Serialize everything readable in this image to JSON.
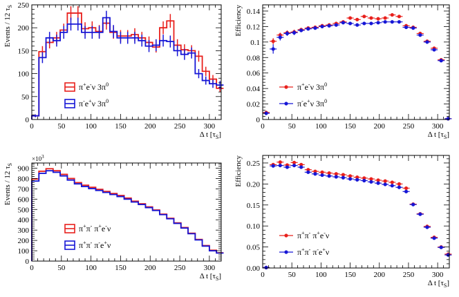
{
  "colors": {
    "red": "#e8201c",
    "blue": "#1616d6",
    "axis": "#000000"
  },
  "chart_data": [
    {
      "id": "p1",
      "type": "histogram",
      "xlabel_main": "Δ t [τ",
      "xlabel_sub": "S",
      "xlabel_end": "]",
      "ylabel_main": "Events / 12 τ",
      "ylabel_sub": "S",
      "xlim": [
        0,
        320
      ],
      "ylim": [
        0,
        250
      ],
      "xticks": [
        0,
        50,
        100,
        150,
        200,
        250,
        300
      ],
      "yticks": [
        0,
        50,
        100,
        150,
        200,
        250
      ],
      "ytick_labels": [
        "0",
        "50",
        "100",
        "150",
        "200",
        "250"
      ],
      "bin_width": 12,
      "x": [
        6,
        18,
        30,
        42,
        54,
        66,
        78,
        90,
        102,
        114,
        126,
        138,
        150,
        162,
        174,
        186,
        198,
        210,
        222,
        234,
        246,
        258,
        270,
        282,
        294,
        306,
        318
      ],
      "legend": {
        "mode": "boxes",
        "pos": "lower-left"
      },
      "series": [
        {
          "name_base": "π",
          "name_sup1": "+",
          "name_mid": "e",
          "name_sup2": "-",
          "name_tail": "ν 3π",
          "name_sup3": "0",
          "color": "red",
          "values": [
            8,
            148,
            168,
            178,
            195,
            232,
            232,
            198,
            200,
            192,
            210,
            190,
            182,
            182,
            185,
            178,
            168,
            158,
            200,
            215,
            162,
            152,
            150,
            138,
            105,
            88,
            68
          ],
          "errors": [
            3,
            12,
            13,
            13,
            14,
            15,
            15,
            14,
            14,
            14,
            14,
            14,
            13,
            13,
            14,
            13,
            13,
            12,
            14,
            15,
            13,
            12,
            12,
            12,
            10,
            9,
            8
          ]
        },
        {
          "name_base": "π",
          "name_sup1": "-",
          "name_mid": "e",
          "name_sup2": "+",
          "name_tail": "ν 3π",
          "name_sup3": "0",
          "color": "blue",
          "values": [
            8,
            135,
            178,
            172,
            190,
            208,
            208,
            190,
            190,
            190,
            222,
            192,
            178,
            178,
            178,
            172,
            160,
            162,
            172,
            170,
            150,
            142,
            145,
            100,
            85,
            78,
            75
          ],
          "errors": [
            3,
            12,
            13,
            13,
            14,
            14,
            14,
            14,
            14,
            14,
            15,
            14,
            13,
            13,
            13,
            13,
            13,
            13,
            13,
            13,
            12,
            12,
            12,
            10,
            9,
            9,
            9
          ]
        }
      ]
    },
    {
      "id": "p2",
      "type": "scatter",
      "xlabel_main": "Δ t [τ",
      "xlabel_sub": "S",
      "xlabel_end": "]",
      "ylabel_main": "Efficiency",
      "ylabel_sub": "",
      "xlim": [
        0,
        320
      ],
      "ylim": [
        0,
        0.148
      ],
      "xticks": [
        0,
        50,
        100,
        150,
        200,
        250,
        300
      ],
      "yticks": [
        0,
        0.02,
        0.04,
        0.06,
        0.08,
        0.1,
        0.12,
        0.14
      ],
      "ytick_labels": [
        "0",
        "0.02",
        "0.04",
        "0.06",
        "0.08",
        "0.1",
        "0.12",
        "0.14"
      ],
      "bin_width": 12,
      "x": [
        6,
        18,
        30,
        42,
        54,
        66,
        78,
        90,
        102,
        114,
        126,
        138,
        150,
        162,
        174,
        186,
        198,
        210,
        222,
        234,
        246,
        258,
        270,
        282,
        294,
        306,
        318
      ],
      "legend": {
        "mode": "markers",
        "pos": "lower-center"
      },
      "series": [
        {
          "name_base": "π",
          "name_sup1": "+",
          "name_mid": "e",
          "name_sup2": "-",
          "name_tail": "ν 3π",
          "name_sup3": "0",
          "color": "red",
          "values": [
            0.009,
            0.101,
            0.109,
            0.112,
            0.113,
            0.116,
            0.118,
            0.119,
            0.121,
            0.122,
            0.124,
            0.126,
            0.131,
            0.129,
            0.133,
            0.131,
            0.13,
            0.131,
            0.135,
            0.133,
            0.121,
            0.119,
            0.111,
            0.101,
            0.092,
            0.077,
            0.001
          ],
          "errors": [
            0.001,
            0.004,
            0.003,
            0.003,
            0.003,
            0.002,
            0.002,
            0.002,
            0.002,
            0.002,
            0.002,
            0.002,
            0.002,
            0.002,
            0.002,
            0.002,
            0.002,
            0.002,
            0.002,
            0.002,
            0.002,
            0.002,
            0.002,
            0.002,
            0.002,
            0.002,
            0.001
          ]
        },
        {
          "name_base": "π",
          "name_sup1": "-",
          "name_mid": "e",
          "name_sup2": "+",
          "name_tail": "ν 3π",
          "name_sup3": "0",
          "color": "blue",
          "values": [
            0.008,
            0.091,
            0.106,
            0.111,
            0.112,
            0.115,
            0.117,
            0.118,
            0.12,
            0.121,
            0.122,
            0.125,
            0.124,
            0.122,
            0.124,
            0.124,
            0.125,
            0.126,
            0.126,
            0.126,
            0.119,
            0.118,
            0.109,
            0.1,
            0.09,
            0.076,
            0.001
          ],
          "errors": [
            0.001,
            0.006,
            0.004,
            0.003,
            0.003,
            0.002,
            0.002,
            0.002,
            0.002,
            0.002,
            0.002,
            0.002,
            0.002,
            0.002,
            0.002,
            0.002,
            0.002,
            0.002,
            0.002,
            0.002,
            0.002,
            0.002,
            0.002,
            0.002,
            0.002,
            0.002,
            0.001
          ]
        }
      ]
    },
    {
      "id": "p3",
      "type": "histogram",
      "xlabel_main": "Δ t [τ",
      "xlabel_sub": "S",
      "xlabel_end": "]",
      "ylabel_main": "Events / 12 τ",
      "ylabel_sub": "S",
      "xlim": [
        0,
        320
      ],
      "ylim": [
        0,
        950
      ],
      "scale_label_base": "×10",
      "scale_label_exp": "3",
      "xticks": [
        0,
        50,
        100,
        150,
        200,
        250,
        300
      ],
      "yticks": [
        0,
        100,
        200,
        300,
        400,
        500,
        600,
        700,
        800,
        900
      ],
      "ytick_labels": [
        "0",
        "100",
        "200",
        "300",
        "400",
        "500",
        "600",
        "700",
        "800",
        "900"
      ],
      "bin_width": 12,
      "x": [
        6,
        18,
        30,
        42,
        54,
        66,
        78,
        90,
        102,
        114,
        126,
        138,
        150,
        162,
        174,
        186,
        198,
        210,
        222,
        234,
        246,
        258,
        270,
        282,
        294,
        306,
        318
      ],
      "legend": {
        "mode": "boxes",
        "pos": "lower-left"
      },
      "series": [
        {
          "name_base": "π",
          "name_sup1": "+",
          "name_mid": "π",
          "name_sup2": "-",
          "name_tail": " π",
          "name_sup3": "+",
          "name_tail2": "e",
          "name_sup4": "-",
          "name_tail3": "ν",
          "color": "red",
          "values": [
            795,
            870,
            895,
            875,
            840,
            800,
            760,
            735,
            715,
            695,
            675,
            655,
            635,
            610,
            580,
            555,
            525,
            495,
            455,
            415,
            370,
            325,
            270,
            210,
            150,
            105,
            80
          ]
        },
        {
          "name_base": "π",
          "name_sup1": "+",
          "name_mid": "π",
          "name_sup2": "-",
          "name_tail": " π",
          "name_sup3": "-",
          "name_tail2": "e",
          "name_sup4": "+",
          "name_tail3": "ν",
          "color": "blue",
          "values": [
            775,
            850,
            875,
            860,
            825,
            785,
            748,
            722,
            702,
            684,
            665,
            645,
            625,
            600,
            572,
            548,
            518,
            490,
            450,
            410,
            365,
            320,
            265,
            205,
            145,
            100,
            78
          ]
        }
      ]
    },
    {
      "id": "p4",
      "type": "scatter",
      "xlabel_main": "Δ t [τ",
      "xlabel_sub": "S",
      "xlabel_end": "]",
      "ylabel_main": "Efficiency",
      "ylabel_sub": "",
      "xlim": [
        0,
        320
      ],
      "ylim": [
        0,
        0.268
      ],
      "xticks": [
        0,
        50,
        100,
        150,
        200,
        250,
        300
      ],
      "yticks": [
        0,
        0.05,
        0.1,
        0.15,
        0.2,
        0.25
      ],
      "ytick_labels": [
        "0.00",
        "0.05",
        "0.10",
        "0.15",
        "0.20",
        "0.25"
      ],
      "bin_width": 12,
      "x": [
        6,
        18,
        30,
        42,
        54,
        66,
        78,
        90,
        102,
        114,
        126,
        138,
        150,
        162,
        174,
        186,
        198,
        210,
        222,
        234,
        246,
        258,
        270,
        282,
        294,
        306,
        318
      ],
      "legend": {
        "mode": "markers",
        "pos": "lower-center"
      },
      "series": [
        {
          "name_base": "π",
          "name_sup1": "+",
          "name_mid": "π",
          "name_sup2": "-",
          "name_tail": " π",
          "name_sup3": "+",
          "name_tail2": "e",
          "name_sup4": "-",
          "name_tail3": "ν",
          "color": "red",
          "values": [
            0.001,
            0.246,
            0.252,
            0.245,
            0.251,
            0.246,
            0.234,
            0.23,
            0.228,
            0.226,
            0.224,
            0.222,
            0.219,
            0.216,
            0.214,
            0.212,
            0.209,
            0.207,
            0.204,
            0.2,
            0.19,
            0.152,
            0.129,
            0.099,
            0.073,
            0.05,
            0.033
          ],
          "errors": [
            0.001,
            0.004,
            0.003,
            0.003,
            0.003,
            0.003,
            0.002,
            0.002,
            0.002,
            0.002,
            0.002,
            0.002,
            0.002,
            0.002,
            0.002,
            0.002,
            0.002,
            0.002,
            0.002,
            0.002,
            0.002,
            0.002,
            0.002,
            0.002,
            0.002,
            0.002,
            0.002
          ]
        },
        {
          "name_base": "π",
          "name_sup1": "+",
          "name_mid": "π",
          "name_sup2": "-",
          "name_tail": " π",
          "name_sup3": "-",
          "name_tail2": "e",
          "name_sup4": "+",
          "name_tail3": "ν",
          "color": "blue",
          "values": [
            0.001,
            0.243,
            0.244,
            0.24,
            0.244,
            0.24,
            0.228,
            0.224,
            0.221,
            0.219,
            0.217,
            0.215,
            0.212,
            0.21,
            0.208,
            0.205,
            0.202,
            0.199,
            0.196,
            0.192,
            0.182,
            0.151,
            0.128,
            0.097,
            0.071,
            0.049,
            0.031
          ],
          "errors": [
            0.001,
            0.004,
            0.003,
            0.003,
            0.003,
            0.003,
            0.002,
            0.002,
            0.002,
            0.002,
            0.002,
            0.002,
            0.002,
            0.002,
            0.002,
            0.002,
            0.002,
            0.002,
            0.002,
            0.002,
            0.002,
            0.002,
            0.002,
            0.002,
            0.002,
            0.002,
            0.002
          ]
        }
      ]
    }
  ]
}
